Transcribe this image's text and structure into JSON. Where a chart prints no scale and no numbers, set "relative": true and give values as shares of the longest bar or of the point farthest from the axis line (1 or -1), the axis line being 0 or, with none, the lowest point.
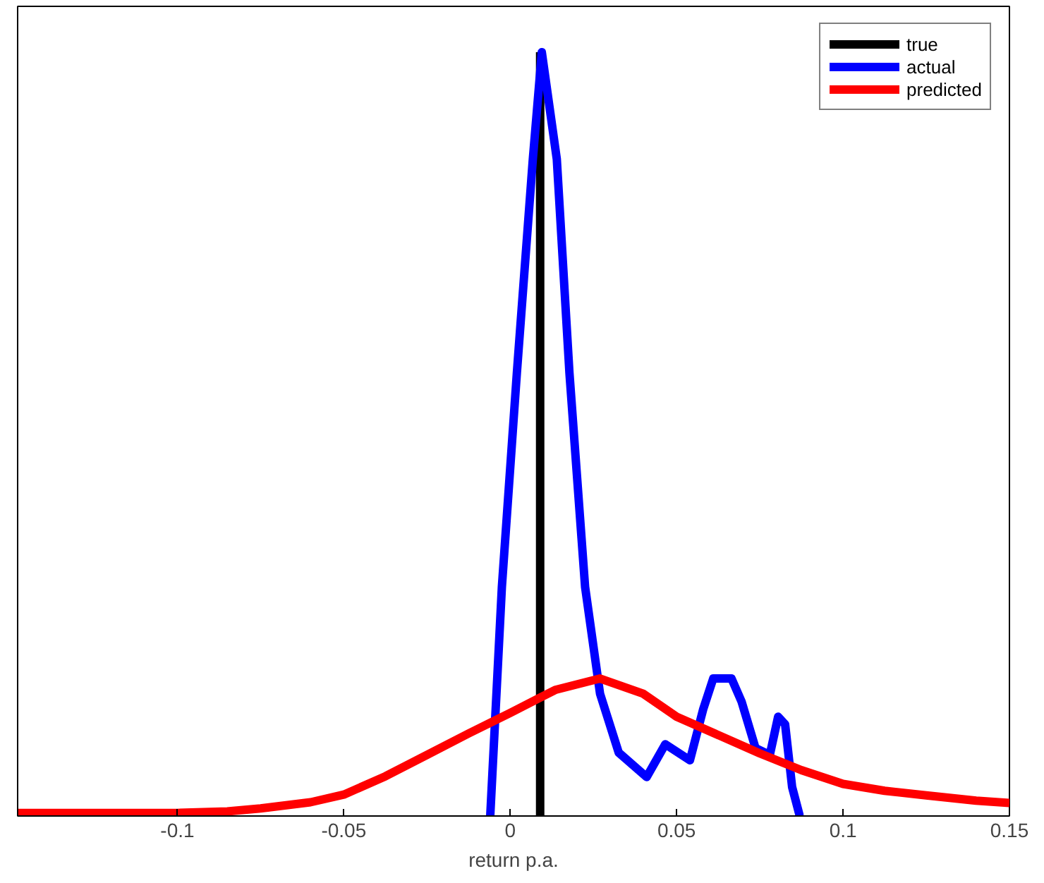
{
  "chart_data": {
    "type": "line",
    "relative": true,
    "xlabel": "return p.a.",
    "xlim": [
      -0.148,
      0.15
    ],
    "xticks": [
      -0.1,
      -0.05,
      0,
      0.05,
      0.1,
      0.15
    ],
    "tick_labels": "x",
    "grid": false,
    "legend": "top right",
    "line_style": "solid",
    "series": [
      {
        "name": "true",
        "color": "#000000",
        "x": [
          0.009,
          0.009
        ],
        "values": [
          0,
          1
        ]
      },
      {
        "name": "actual",
        "color": "#0000ff",
        "x": [
          -0.006,
          -0.0025,
          0.002,
          0.0068,
          0.0095,
          0.014,
          0.0178,
          0.0225,
          0.027,
          0.0326,
          0.041,
          0.0466,
          0.054,
          0.058,
          0.061,
          0.0665,
          0.0695,
          0.0737,
          0.078,
          0.0805,
          0.0826,
          0.0847,
          0.087
        ],
        "values": [
          0,
          0.3,
          0.58,
          0.86,
          1,
          0.86,
          0.58,
          0.3,
          0.16,
          0.083,
          0.051,
          0.094,
          0.073,
          0.14,
          0.18,
          0.18,
          0.15,
          0.089,
          0.08,
          0.13,
          0.12,
          0.038,
          0
        ]
      },
      {
        "name": "predicted",
        "color": "#ff0000",
        "x": [
          -0.148,
          -0.1,
          -0.085,
          -0.075,
          -0.06,
          -0.05,
          -0.0375,
          -0.025,
          -0.0125,
          0,
          0.0135,
          0.027,
          0.04,
          0.05,
          0.0625,
          0.075,
          0.0875,
          0.1,
          0.1125,
          0.125,
          0.14,
          0.15
        ],
        "values": [
          0.004,
          0.004,
          0.006,
          0.01,
          0.018,
          0.028,
          0.052,
          0.08,
          0.108,
          0.135,
          0.165,
          0.18,
          0.16,
          0.13,
          0.106,
          0.082,
          0.06,
          0.042,
          0.033,
          0.027,
          0.02,
          0.017
        ]
      }
    ]
  }
}
